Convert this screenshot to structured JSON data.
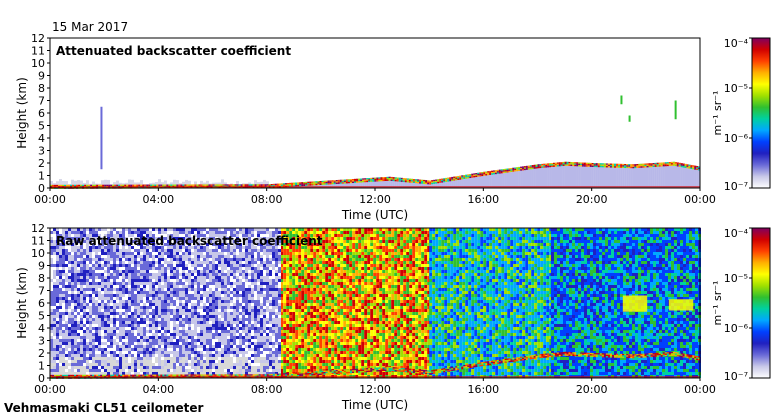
{
  "date": "15 Mar 2017",
  "footer": "Vehmasmaki CL51 ceilometer",
  "colorbar": {
    "unit": "m⁻¹ sr⁻¹",
    "ticks": [
      "10⁻⁷",
      "10⁻⁶",
      "10⁻⁵",
      "10⁻⁴"
    ],
    "colors": [
      "#ffffff",
      "#c8c8e8",
      "#6a6ad8",
      "#2020c0",
      "#0040ff",
      "#00a8ff",
      "#00d0a0",
      "#30c030",
      "#a0e000",
      "#ffff00",
      "#ffb000",
      "#ff4000",
      "#d00000",
      "#800060"
    ]
  },
  "chart_data": [
    {
      "type": "heatmap",
      "title": "Attenuated backscatter coefficient",
      "xlabel": "Time (UTC)",
      "ylabel": "Height (km)",
      "xticks": [
        "00:00",
        "04:00",
        "08:00",
        "12:00",
        "16:00",
        "20:00",
        "00:00"
      ],
      "yticks": [
        "0",
        "1",
        "2",
        "3",
        "4",
        "5",
        "6",
        "7",
        "8",
        "9",
        "10",
        "11",
        "12"
      ],
      "xlim_hours": [
        0,
        24
      ],
      "ylim_km": [
        0,
        12
      ],
      "boundary_layer_top_km": [
        [
          0,
          0.25
        ],
        [
          8,
          0.3
        ],
        [
          9.5,
          0.5
        ],
        [
          11,
          0.7
        ],
        [
          12.5,
          0.9
        ],
        [
          14,
          0.6
        ],
        [
          16,
          1.3
        ],
        [
          17,
          1.6
        ],
        [
          18,
          1.9
        ],
        [
          19,
          2.1
        ],
        [
          20,
          2.0
        ],
        [
          21.5,
          1.9
        ],
        [
          23,
          2.1
        ],
        [
          24,
          1.7
        ]
      ],
      "cloud_features": [
        {
          "time_h": 1.9,
          "base_km": 1.5,
          "top_km": 6.5
        },
        {
          "time_h": 21.1,
          "base_km": 6.7,
          "top_km": 7.4
        },
        {
          "time_h": 21.4,
          "base_km": 5.3,
          "top_km": 5.8
        },
        {
          "time_h": 23.1,
          "base_km": 5.5,
          "top_km": 7.0
        }
      ]
    },
    {
      "type": "heatmap",
      "title": "Raw attenuated backscatter coefficient",
      "xlabel": "Time (UTC)",
      "ylabel": "Height (km)",
      "xticks": [
        "00:00",
        "04:00",
        "08:00",
        "12:00",
        "16:00",
        "20:00",
        "00:00"
      ],
      "yticks": [
        "0",
        "1",
        "2",
        "3",
        "4",
        "5",
        "6",
        "7",
        "8",
        "9",
        "10",
        "11",
        "12"
      ],
      "xlim_hours": [
        0,
        24
      ],
      "ylim_km": [
        0,
        12
      ],
      "noisy_bands": [
        {
          "from_h": 8.5,
          "to_h": 14.0,
          "level": "high"
        },
        {
          "from_h": 14.0,
          "to_h": 18.5,
          "level": "medium"
        },
        {
          "from_h": 18.5,
          "to_h": 24.0,
          "level": "medium-low"
        },
        {
          "from_h": 0.0,
          "to_h": 8.5,
          "level": "low"
        }
      ],
      "cloud_features": [
        {
          "time_h": 21.6,
          "base_km": 5.3,
          "top_km": 6.6
        },
        {
          "time_h": 23.3,
          "base_km": 5.4,
          "top_km": 6.3
        }
      ]
    }
  ]
}
